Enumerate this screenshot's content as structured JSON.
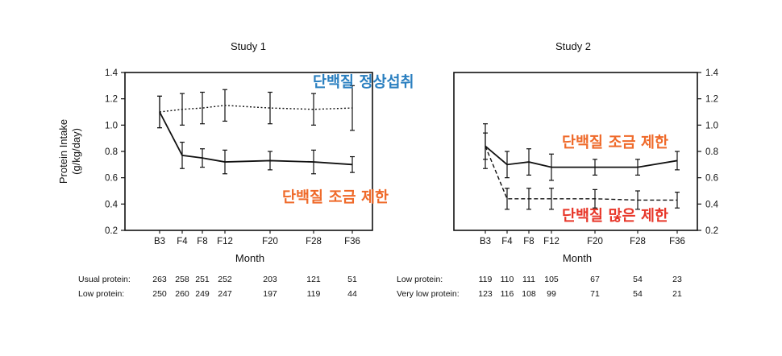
{
  "colors": {
    "annotation_blue": "#2a7fc0",
    "annotation_orange": "#ef6a2a",
    "annotation_red": "#e8372a",
    "ink": "#111111"
  },
  "chart_data": [
    {
      "type": "line",
      "title": "Study 1",
      "xlabel": "Month",
      "ylabel": "Protein Intake (g/kg/day)",
      "ylim": [
        0.2,
        1.4
      ],
      "yticks": [
        "0.2",
        "0.4",
        "0.6",
        "0.8",
        "1.0",
        "1.2",
        "1.4"
      ],
      "categories": [
        "B3",
        "F4",
        "F8",
        "F12",
        "F20",
        "F28",
        "F36"
      ],
      "x_months": [
        -3,
        4,
        8,
        12,
        20,
        28,
        36
      ],
      "series": [
        {
          "values": [
            1.1,
            1.12,
            1.13,
            1.15,
            1.13,
            1.12,
            1.13
          ],
          "error": [
            0.12,
            0.12,
            0.12,
            0.12,
            0.12,
            0.12,
            0.17
          ],
          "style": "dotted"
        },
        {
          "values": [
            1.1,
            0.77,
            0.75,
            0.72,
            0.73,
            0.72,
            0.7
          ],
          "error": [
            0.12,
            0.1,
            0.07,
            0.09,
            0.07,
            0.09,
            0.06
          ],
          "style": "solid"
        }
      ],
      "annotations": [
        {
          "text": "단백질 정상섭취",
          "color": "annotation_blue"
        },
        {
          "text": "단백질 조금 제한",
          "color": "annotation_orange"
        }
      ],
      "table": [
        {
          "label": "Usual protein:",
          "values": [
            "263",
            "258",
            "251",
            "252",
            "203",
            "121",
            "51"
          ]
        },
        {
          "label": "Low protein:",
          "values": [
            "250",
            "260",
            "249",
            "247",
            "197",
            "119",
            "44"
          ]
        }
      ]
    },
    {
      "type": "line",
      "title": "Study 2",
      "xlabel": "Month",
      "ylim": [
        0.2,
        1.4
      ],
      "yticks": [
        "0.2",
        "0.4",
        "0.6",
        "0.8",
        "1.0",
        "1.2",
        "1.4"
      ],
      "categories": [
        "B3",
        "F4",
        "F8",
        "F12",
        "F20",
        "F28",
        "F36"
      ],
      "x_months": [
        -3,
        4,
        8,
        12,
        20,
        28,
        36
      ],
      "series": [
        {
          "values": [
            0.84,
            0.7,
            0.72,
            0.68,
            0.68,
            0.68,
            0.73
          ],
          "error": [
            0.17,
            0.1,
            0.1,
            0.1,
            0.06,
            0.06,
            0.07
          ],
          "style": "solid"
        },
        {
          "values": [
            0.84,
            0.44,
            0.44,
            0.44,
            0.44,
            0.43,
            0.43
          ],
          "error": [
            0.1,
            0.08,
            0.08,
            0.08,
            0.07,
            0.07,
            0.06
          ],
          "style": "dashed"
        }
      ],
      "annotations": [
        {
          "text": "단백질 조금 제한",
          "color": "annotation_orange"
        },
        {
          "text": "단백질 많은 제한",
          "color": "annotation_red"
        }
      ],
      "table": [
        {
          "label": "Low protein:",
          "values": [
            "119",
            "110",
            "111",
            "105",
            "67",
            "54",
            "23"
          ]
        },
        {
          "label": "Very low protein:",
          "values": [
            "123",
            "116",
            "108",
            "99",
            "71",
            "54",
            "21"
          ]
        }
      ]
    }
  ]
}
